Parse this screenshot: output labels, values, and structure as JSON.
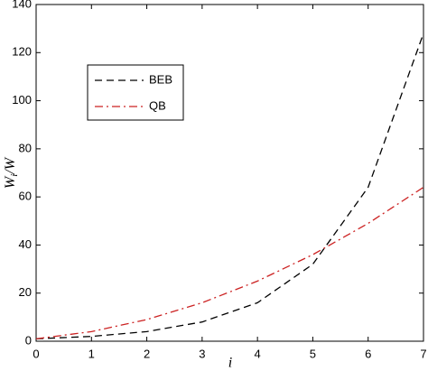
{
  "chart_data": {
    "type": "line",
    "xlabel": "i",
    "ylabel": {
      "base": "W",
      "sub": "i",
      "rest": "/W"
    },
    "x": [
      0,
      1,
      2,
      3,
      4,
      5,
      6,
      7
    ],
    "series": [
      {
        "name": "BEB",
        "color": "#000000",
        "dash": "8,5",
        "values": [
          1,
          2,
          4,
          8,
          16,
          32,
          64,
          128
        ]
      },
      {
        "name": "QB",
        "color": "#cc2222",
        "dash": "9,4,2,4",
        "values": [
          1,
          4,
          9,
          16,
          25,
          36,
          49,
          64
        ]
      }
    ],
    "xlim": [
      0,
      7
    ],
    "ylim": [
      0,
      140
    ],
    "xticks": [
      0,
      1,
      2,
      3,
      4,
      5,
      6,
      7
    ],
    "yticks": [
      0,
      20,
      40,
      60,
      80,
      100,
      120,
      140
    ],
    "legend": "upper-left"
  }
}
